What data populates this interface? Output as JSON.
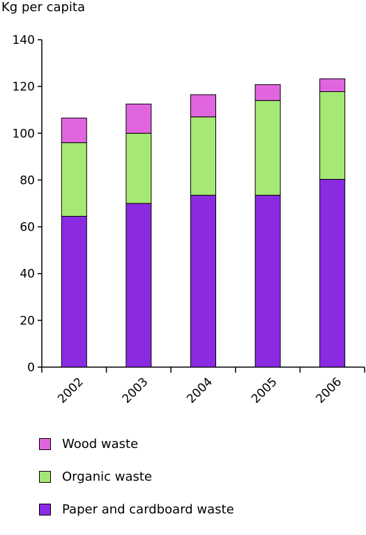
{
  "chart_data": {
    "type": "bar",
    "stacked": true,
    "ylabel": "Kg per capita",
    "xlabel": "",
    "title": "",
    "ylim": [
      0,
      140
    ],
    "yticks": [
      0,
      20,
      40,
      60,
      80,
      100,
      120,
      140
    ],
    "categories": [
      "2002",
      "2003",
      "2004",
      "2005",
      "2006"
    ],
    "series": [
      {
        "name": "Paper and cardboard waste",
        "color": "#8a2be2",
        "values": [
          64.5,
          70,
          73.5,
          73.5,
          80.3
        ]
      },
      {
        "name": "Organic waste",
        "color": "#a6e874",
        "values": [
          31.5,
          30,
          33.5,
          40.5,
          37.5
        ]
      },
      {
        "name": "Wood waste",
        "color": "#e265e0",
        "values": [
          10.5,
          12.5,
          9.5,
          6.8,
          5.5
        ]
      }
    ],
    "legend": {
      "position": "bottom",
      "order": [
        "Wood waste",
        "Organic waste",
        "Paper and cardboard waste"
      ]
    },
    "grid": false
  }
}
